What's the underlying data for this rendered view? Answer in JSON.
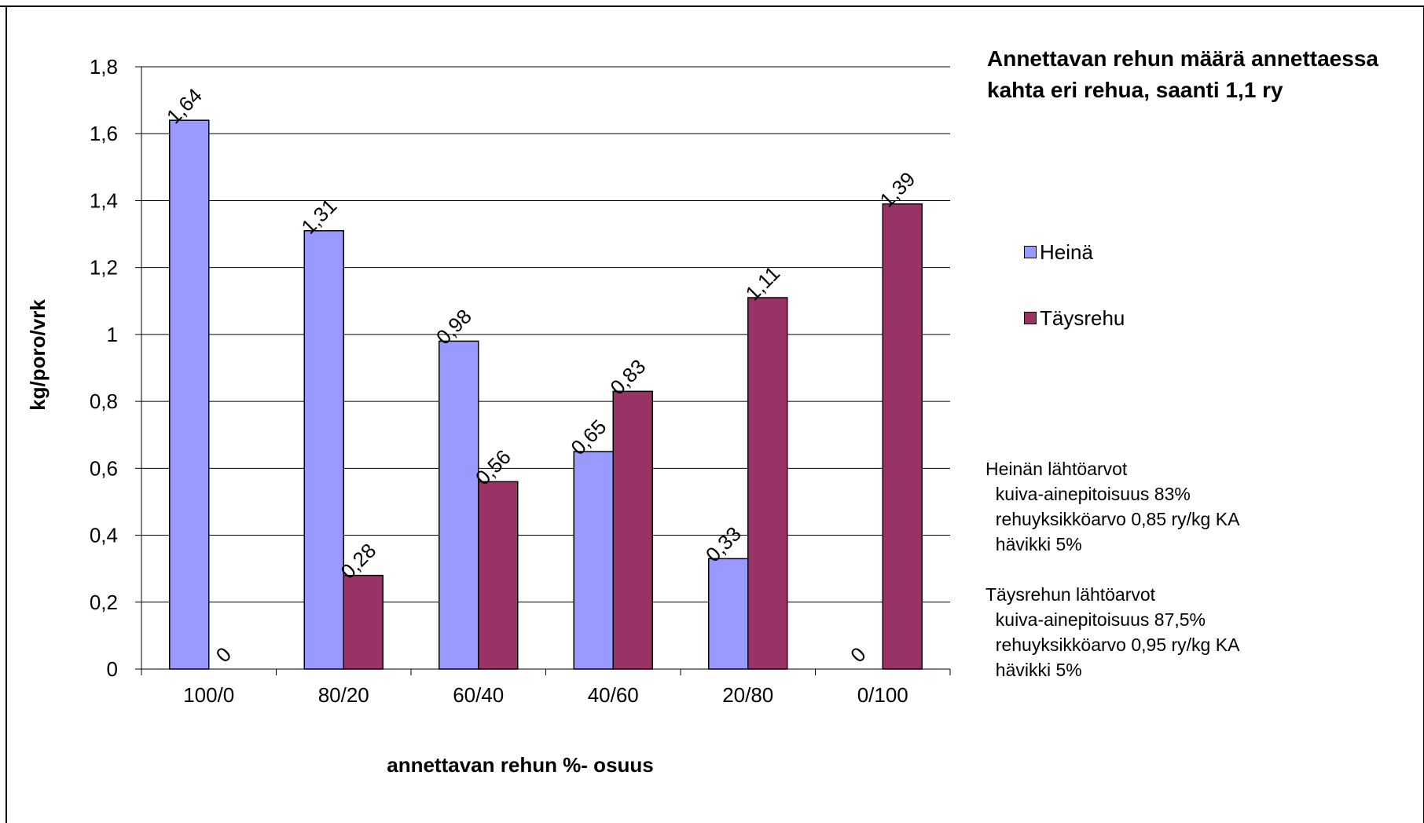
{
  "chart_data": {
    "type": "bar",
    "title": "Annettavan rehun määrä annettaessa kahta eri rehua, saanti 1,1 ry",
    "xlabel": "annettavan rehun %- osuus",
    "ylabel": "kg/poro/vrk",
    "ylim": [
      0,
      1.8
    ],
    "yticks": [
      "0",
      "0,2",
      "0,4",
      "0,6",
      "0,8",
      "1",
      "1,2",
      "1,4",
      "1,6",
      "1,8"
    ],
    "ytick_values": [
      0,
      0.2,
      0.4,
      0.6,
      0.8,
      1.0,
      1.2,
      1.4,
      1.6,
      1.8
    ],
    "grid": true,
    "legend_position": "right",
    "categories": [
      "100/0",
      "80/20",
      "60/40",
      "40/60",
      "20/80",
      "0/100"
    ],
    "series": [
      {
        "name": "Heinä",
        "color": "#9999ff",
        "values": [
          1.64,
          1.31,
          0.98,
          0.65,
          0.33,
          0
        ],
        "labels": [
          "1,64",
          "1,31",
          "0,98",
          "0,65",
          "0,33",
          "0"
        ]
      },
      {
        "name": "Täysrehu",
        "color": "#993366",
        "values": [
          0,
          0.28,
          0.56,
          0.83,
          1.11,
          1.39
        ],
        "labels": [
          "0",
          "0,28",
          "0,56",
          "0,83",
          "1,11",
          "1,39"
        ]
      }
    ],
    "annotations": [
      "Heinän lähtöarvot",
      "  kuiva-ainepitoisuus 83%",
      "  rehuyksikköarvo 0,85 ry/kg KA",
      "  hävikki 5%",
      "",
      "Täysrehun lähtöarvot",
      "  kuiva-ainepitoisuus 87,5%",
      "  rehuyksikköarvo 0,95 ry/kg KA",
      "  hävikki 5%"
    ]
  }
}
